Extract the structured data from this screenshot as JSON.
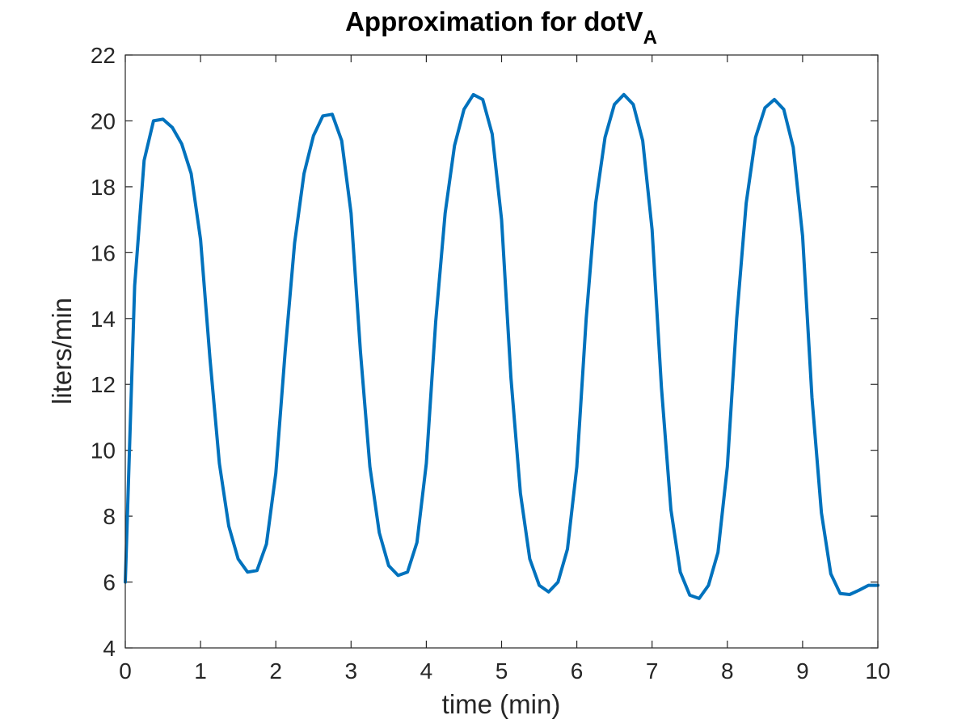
{
  "chart_data": {
    "type": "line",
    "title": "Approximation for dotV",
    "title_subscript": "A",
    "xlabel": "time (min)",
    "ylabel": "liters/min",
    "xlim": [
      0,
      10
    ],
    "ylim": [
      4,
      22
    ],
    "xticks": [
      0,
      1,
      2,
      3,
      4,
      5,
      6,
      7,
      8,
      9,
      10
    ],
    "yticks": [
      4,
      6,
      8,
      10,
      12,
      14,
      16,
      18,
      20,
      22
    ],
    "grid": false,
    "legend": "none",
    "colors": {
      "series": "#0072BD",
      "axes": "#262626",
      "background": "#ffffff"
    },
    "series": [
      {
        "x": [
          0.0,
          0.125,
          0.25,
          0.375,
          0.5,
          0.625,
          0.75,
          0.875,
          1.0,
          1.125,
          1.25,
          1.375,
          1.5,
          1.625,
          1.75,
          1.875,
          2.0,
          2.125,
          2.25,
          2.375,
          2.5,
          2.625,
          2.75,
          2.875,
          3.0,
          3.125,
          3.25,
          3.375,
          3.5,
          3.625,
          3.75,
          3.875,
          4.0,
          4.125,
          4.25,
          4.375,
          4.5,
          4.625,
          4.75,
          4.875,
          5.0,
          5.125,
          5.25,
          5.375,
          5.5,
          5.625,
          5.75,
          5.875,
          6.0,
          6.125,
          6.25,
          6.375,
          6.5,
          6.625,
          6.75,
          6.875,
          7.0,
          7.125,
          7.25,
          7.375,
          7.5,
          7.625,
          7.75,
          7.875,
          8.0,
          8.125,
          8.25,
          8.375,
          8.5,
          8.625,
          8.75,
          8.875,
          9.0,
          9.125,
          9.25,
          9.375,
          9.5,
          9.625,
          9.75,
          9.875,
          10.0
        ],
        "y": [
          6.0,
          15.0,
          18.8,
          20.0,
          20.05,
          19.8,
          19.3,
          18.4,
          16.4,
          12.8,
          9.6,
          7.7,
          6.7,
          6.3,
          6.35,
          7.15,
          9.3,
          13.0,
          16.3,
          18.4,
          19.55,
          20.15,
          20.2,
          19.4,
          17.2,
          13.0,
          9.5,
          7.5,
          6.5,
          6.2,
          6.3,
          7.2,
          9.6,
          13.9,
          17.2,
          19.25,
          20.35,
          20.8,
          20.65,
          19.6,
          17.0,
          12.2,
          8.7,
          6.7,
          5.9,
          5.7,
          6.0,
          7.0,
          9.5,
          14.0,
          17.5,
          19.5,
          20.5,
          20.8,
          20.5,
          19.4,
          16.7,
          11.9,
          8.2,
          6.3,
          5.6,
          5.5,
          5.9,
          6.9,
          9.5,
          14.0,
          17.5,
          19.5,
          20.4,
          20.65,
          20.35,
          19.2,
          16.5,
          11.6,
          8.1,
          6.25,
          5.65,
          5.62,
          5.75,
          5.9,
          5.9
        ]
      }
    ]
  }
}
